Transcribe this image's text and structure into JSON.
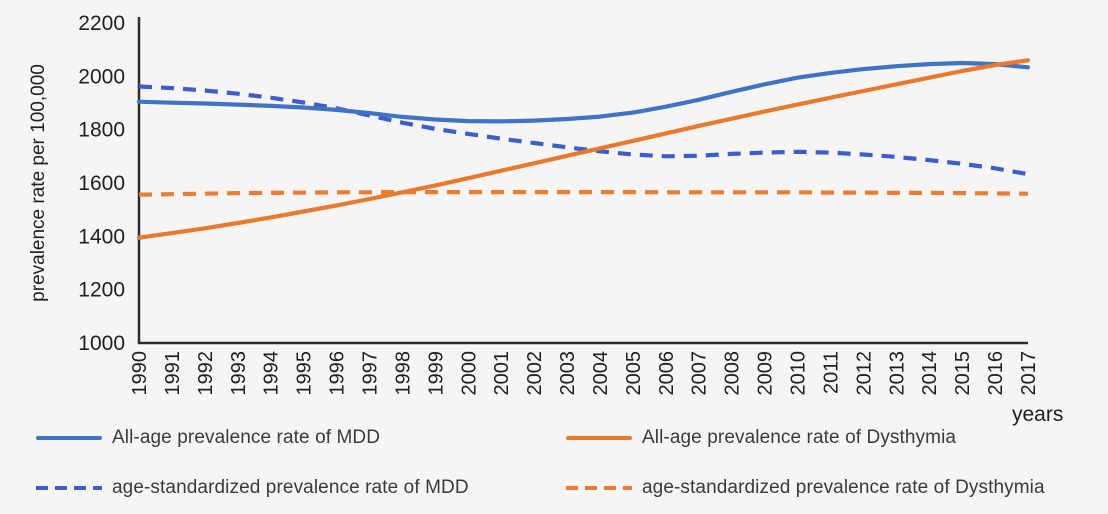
{
  "page": {
    "background": "#f6f5f3",
    "text_color": "#1f1f1f",
    "axis_color": "#2d2d2d",
    "legend_text_color": "#3a3a3a"
  },
  "chart_data": {
    "type": "line",
    "title": "",
    "ylabel": "prevalence rate per 100,000",
    "xlabel": "years",
    "ylim": [
      1000,
      2200
    ],
    "y_ticks": [
      2200,
      2000,
      1800,
      1600,
      1400,
      1200,
      1000
    ],
    "grid": false,
    "legend_position": "bottom",
    "x": [
      "1990",
      "1991",
      "1992",
      "1993",
      "1994",
      "1995",
      "1996",
      "1997",
      "1998",
      "1999",
      "2000",
      "2001",
      "2002",
      "2003",
      "2004",
      "2005",
      "2006",
      "2007",
      "2008",
      "2009",
      "2010",
      "2011",
      "2012",
      "2013",
      "2014",
      "2015",
      "2016",
      "2017"
    ],
    "series": [
      {
        "name": "All-age prevalence rate of MDD",
        "line_style": "solid",
        "color": "#3E73C6",
        "values": [
          1905,
          1901,
          1898,
          1894,
          1889,
          1883,
          1874,
          1862,
          1848,
          1838,
          1832,
          1831,
          1834,
          1840,
          1849,
          1864,
          1886,
          1912,
          1942,
          1970,
          1995,
          2013,
          2027,
          2038,
          2046,
          2050,
          2046,
          2034
        ]
      },
      {
        "name": "age-standardized prevalence rate of MDD",
        "line_style": "dashed",
        "color": "#3C5ECD",
        "values": [
          1962,
          1956,
          1947,
          1935,
          1920,
          1902,
          1880,
          1853,
          1826,
          1803,
          1784,
          1766,
          1750,
          1734,
          1719,
          1707,
          1700,
          1702,
          1709,
          1714,
          1717,
          1714,
          1707,
          1698,
          1686,
          1672,
          1655,
          1633
        ]
      },
      {
        "name": "All-age prevalence rate of Dysthymia",
        "line_style": "solid",
        "color": "#E8792F",
        "values": [
          1395,
          1412,
          1430,
          1450,
          1471,
          1493,
          1516,
          1540,
          1565,
          1591,
          1618,
          1646,
          1674,
          1702,
          1730,
          1758,
          1786,
          1814,
          1841,
          1868,
          1894,
          1920,
          1945,
          1970,
          1995,
          2020,
          2042,
          2060
        ]
      },
      {
        "name": "age-standardized prevalence rate of Dysthymia",
        "line_style": "dashed",
        "color": "#EB7D33",
        "values": [
          1556,
          1558,
          1560,
          1562,
          1563,
          1564,
          1565,
          1565,
          1566,
          1566,
          1566,
          1566,
          1566,
          1566,
          1566,
          1566,
          1565,
          1565,
          1565,
          1565,
          1565,
          1564,
          1564,
          1563,
          1563,
          1562,
          1561,
          1560
        ]
      }
    ]
  }
}
